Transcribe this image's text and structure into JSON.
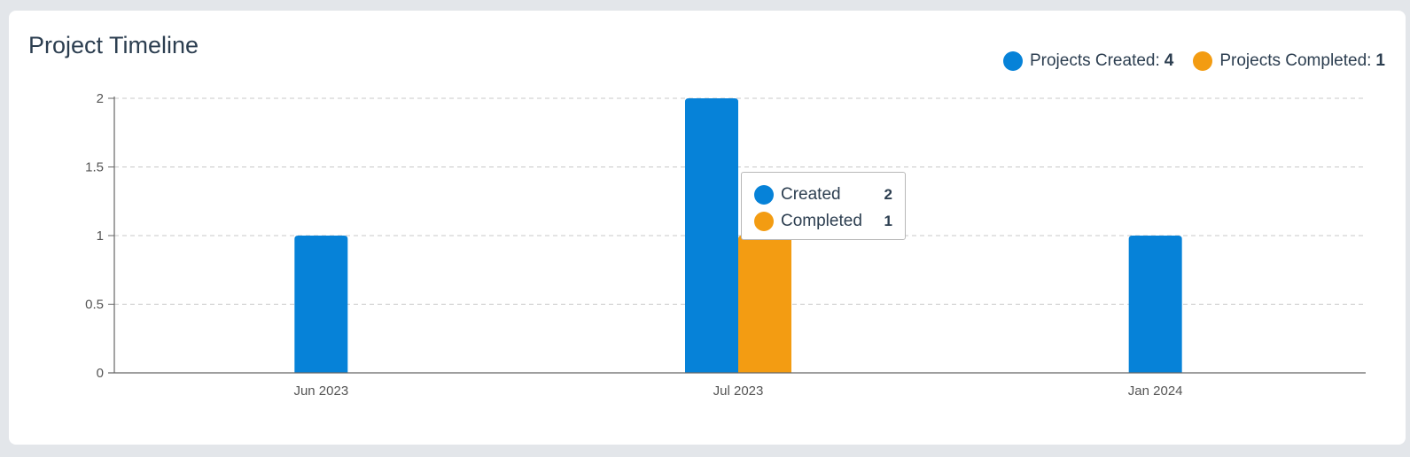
{
  "title": "Project Timeline",
  "legend": {
    "items": [
      {
        "label": "Projects Created:",
        "value": "4",
        "color": "#0682d8",
        "icon": "legend-dot-icon"
      },
      {
        "label": "Projects Completed:",
        "value": "1",
        "color": "#f39c12",
        "icon": "legend-dot-icon"
      }
    ]
  },
  "tooltip": {
    "rows": [
      {
        "label": "Created",
        "value": "2",
        "color": "#0682d8"
      },
      {
        "label": "Completed",
        "value": "1",
        "color": "#f39c12"
      }
    ]
  },
  "chart_data": {
    "type": "bar",
    "categories": [
      "Jun 2023",
      "Jul 2023",
      "Jan 2024"
    ],
    "series": [
      {
        "name": "Created",
        "values": [
          1,
          2,
          1
        ],
        "color": "#0682d8"
      },
      {
        "name": "Completed",
        "values": [
          0,
          1,
          0
        ],
        "color": "#f39c12"
      }
    ],
    "title": "Project Timeline",
    "xlabel": "",
    "ylabel": "",
    "ylim": [
      0,
      2
    ],
    "yticks": [
      0,
      0.5,
      1,
      1.5,
      2
    ],
    "ytick_labels": [
      "0",
      "0.5",
      "1",
      "1.5",
      "2"
    ],
    "grid": true,
    "legend_position": "top-right"
  }
}
